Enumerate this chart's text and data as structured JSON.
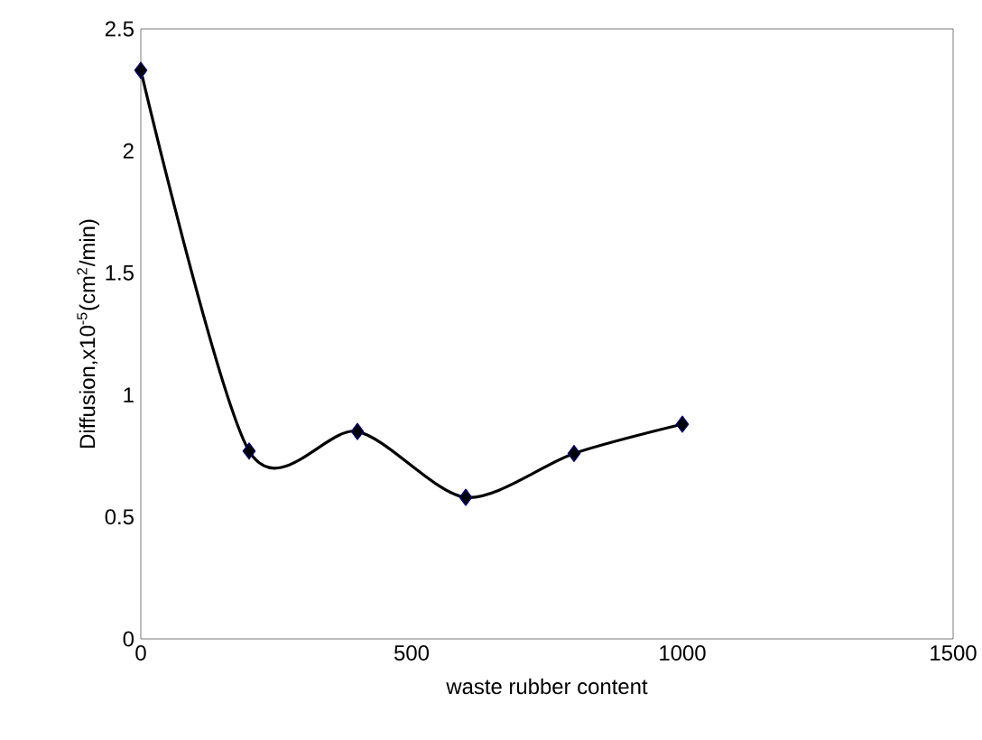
{
  "chart_data": {
    "type": "line",
    "xlabel": "waste rubber content",
    "ylabel": "Diffusion,x10$^{-5}$(cm$^{2}$/min)",
    "x": [
      0,
      200,
      400,
      600,
      800,
      1000
    ],
    "series": [
      {
        "color": "#000000",
        "values": [
          2.33,
          0.77,
          0.85,
          0.58,
          0.76,
          0.88
        ]
      }
    ],
    "xlim": [
      0,
      1500
    ],
    "xticks": [
      0,
      500,
      1000,
      1500
    ],
    "ylim": [
      0,
      2.5
    ],
    "yticks": [
      0,
      0.5,
      1,
      1.5,
      2,
      2.5
    ],
    "marker": "diamond",
    "line_style": "solid"
  }
}
